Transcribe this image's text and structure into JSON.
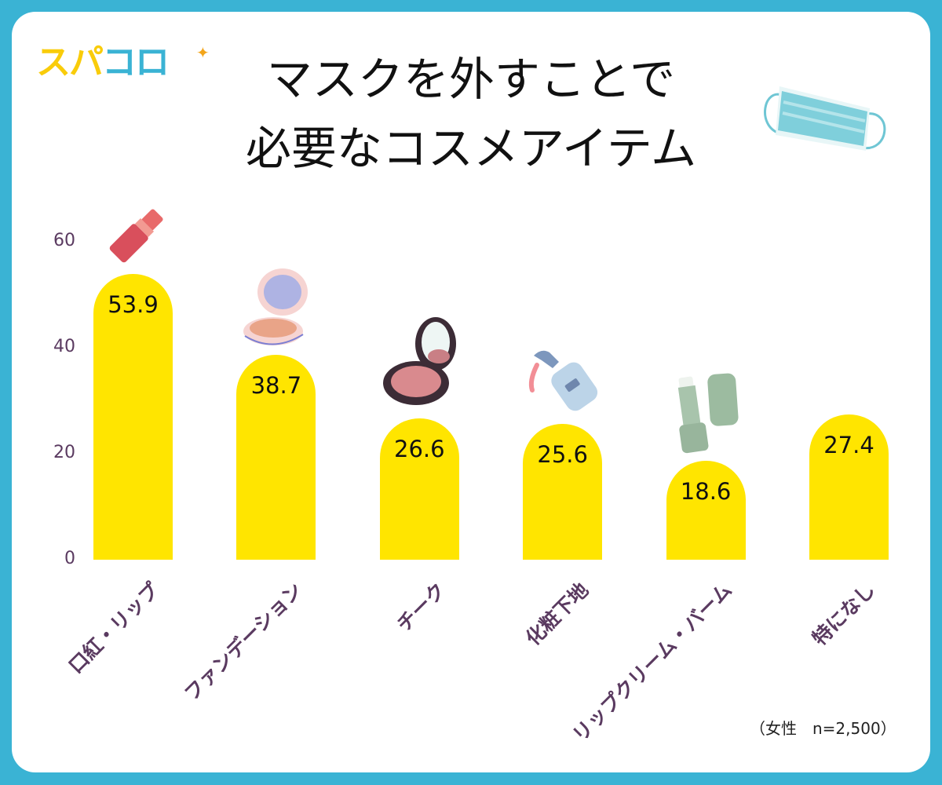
{
  "logo": {
    "part1": "スパ",
    "part2": "コロ",
    "sparkle": "✦"
  },
  "title": {
    "line1": "マスクを外すことで",
    "line2": "必要なコスメアイテム"
  },
  "note": "（女性　n=2,500）",
  "colors": {
    "frame": "#3ab3d4",
    "bar": "#ffe500",
    "axis_text": "#5a3a60",
    "logo_yellow": "#f9cc0a",
    "logo_blue": "#3ab3d4"
  },
  "y_axis": {
    "ticks": [
      "60",
      "40",
      "20",
      "0"
    ]
  },
  "bars": [
    {
      "label": "口紅・リップ",
      "value": "53.9",
      "icon": "lipstick-icon"
    },
    {
      "label": "ファンデーション",
      "value": "38.7",
      "icon": "compact-powder-icon"
    },
    {
      "label": "チーク",
      "value": "26.6",
      "icon": "blush-compact-icon"
    },
    {
      "label": "化粧下地",
      "value": "25.6",
      "icon": "pump-bottle-icon"
    },
    {
      "label": "リップクリーム・バーム",
      "value": "18.6",
      "icon": "lip-balm-icon"
    },
    {
      "label": "特になし",
      "value": "27.4",
      "icon": ""
    }
  ],
  "chart_data": {
    "type": "bar",
    "title": "マスクを外すことで必要なコスメアイテム",
    "categories": [
      "口紅・リップ",
      "ファンデーション",
      "チーク",
      "化粧下地",
      "リップクリーム・バーム",
      "特になし"
    ],
    "values": [
      53.9,
      38.7,
      26.6,
      25.6,
      18.6,
      27.4
    ],
    "xlabel": "",
    "ylabel": "",
    "ylim": [
      0,
      60
    ],
    "yticks": [
      0,
      20,
      40,
      60
    ],
    "grid": false,
    "legend": null,
    "annotations": [
      "（女性　n=2,500）"
    ]
  }
}
